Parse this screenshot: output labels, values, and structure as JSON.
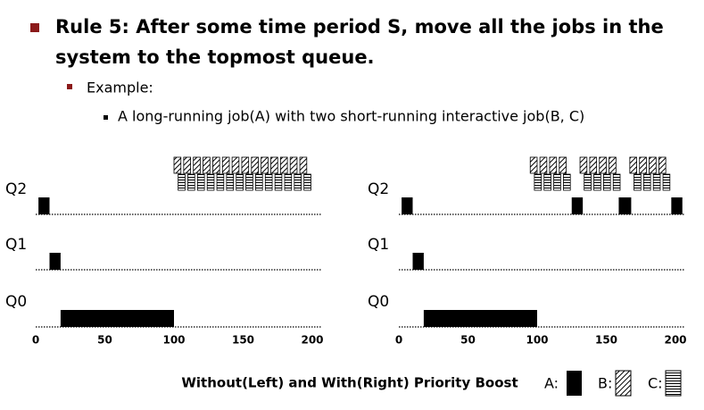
{
  "slide": {
    "title_lines": [
      "Rule 5: After some time period S, move all the jobs in the",
      "system to the topmost queue."
    ],
    "sub_bullet": "Example:",
    "sub_sub_bullet": "A long-running job(A) with two short-running interactive job(B, C)",
    "caption": "Without(Left) and With(Right) Priority Boost",
    "legend": [
      "A:",
      "B:",
      "C:"
    ]
  },
  "chart_data": [
    {
      "type": "timeline",
      "categories": [
        "Q2",
        "Q1",
        "Q0"
      ],
      "xlim": [
        0,
        200
      ],
      "xticks": [
        0,
        50,
        100,
        150,
        200
      ],
      "series": [
        {
          "name": "A",
          "segments": [
            {
              "queue": "Q2",
              "start": 2,
              "end": 10
            },
            {
              "queue": "Q1",
              "start": 10,
              "end": 18
            },
            {
              "queue": "Q0",
              "start": 18,
              "end": 100
            }
          ]
        },
        {
          "name": "B",
          "queue": "Q2",
          "starts": [
            100,
            107,
            114,
            121,
            128,
            135,
            142,
            149,
            156,
            163,
            170,
            177,
            184,
            191
          ],
          "width": 5
        },
        {
          "name": "C",
          "queue": "Q2",
          "starts": [
            103,
            110,
            117,
            124,
            131,
            138,
            145,
            152,
            159,
            166,
            173,
            180,
            187,
            194
          ],
          "width": 5
        }
      ]
    },
    {
      "type": "timeline",
      "categories": [
        "Q2",
        "Q1",
        "Q0"
      ],
      "xlim": [
        0,
        200
      ],
      "xticks": [
        0,
        50,
        100,
        150,
        200
      ],
      "series": [
        {
          "name": "A",
          "segments": [
            {
              "queue": "Q2",
              "start": 2,
              "end": 10
            },
            {
              "queue": "Q1",
              "start": 10,
              "end": 18
            },
            {
              "queue": "Q0",
              "start": 18,
              "end": 100
            },
            {
              "queue": "Q2",
              "start": 125,
              "end": 133
            },
            {
              "queue": "Q2",
              "start": 159,
              "end": 168
            },
            {
              "queue": "Q2",
              "start": 197,
              "end": 205
            }
          ]
        },
        {
          "name": "B",
          "queue": "Q2",
          "starts": [
            95,
            102,
            109,
            116,
            131,
            138,
            145,
            152,
            167,
            174,
            181,
            188
          ],
          "width": 5
        },
        {
          "name": "C",
          "queue": "Q2",
          "starts": [
            98,
            105,
            112,
            119,
            134,
            141,
            148,
            155,
            170,
            177,
            184,
            191
          ],
          "width": 5
        }
      ]
    }
  ]
}
